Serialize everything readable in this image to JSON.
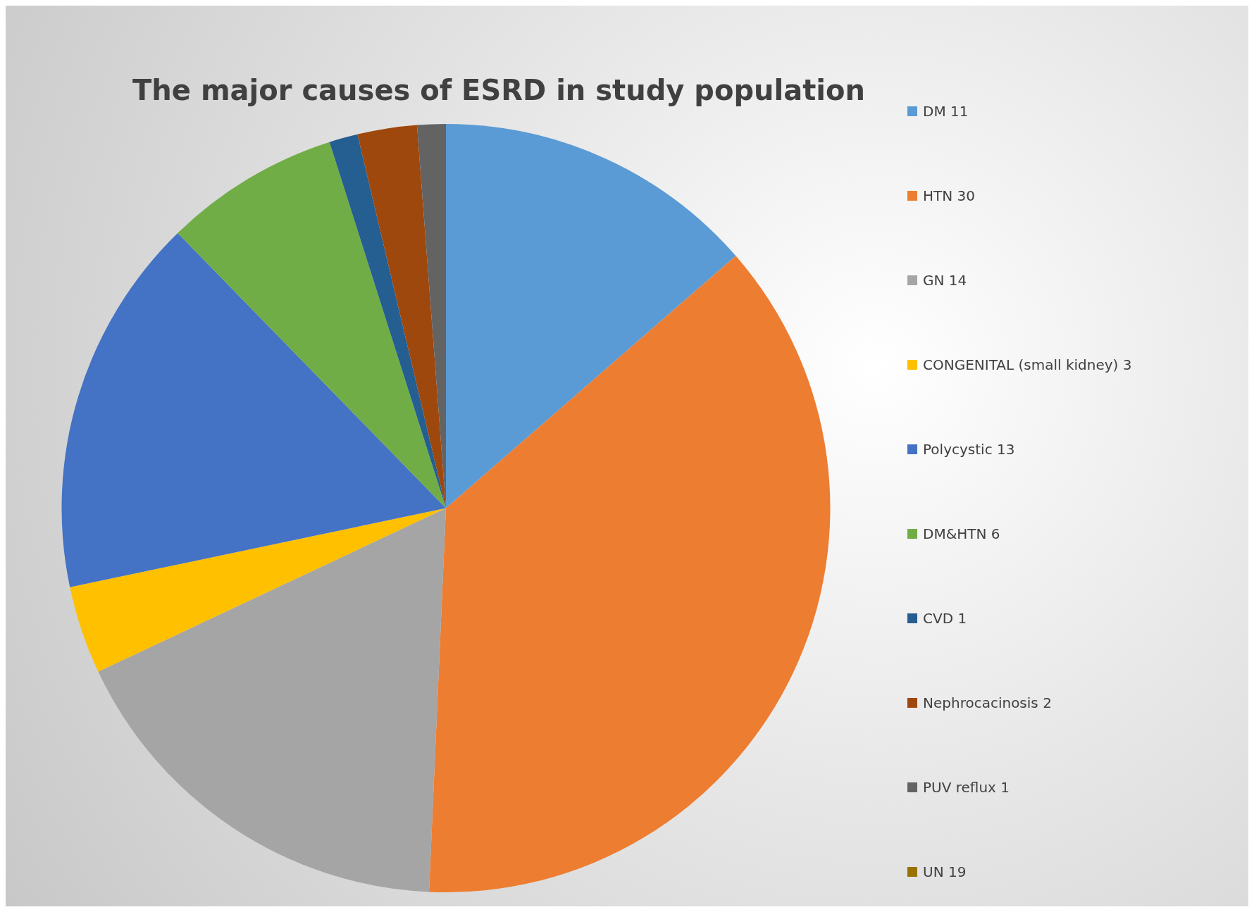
{
  "chart_data": {
    "type": "pie",
    "title": "The major causes of ESRD in study population",
    "categories": [
      "DM 11",
      "HTN 30",
      "GN 14",
      "CONGENITAL (small kidney) 3",
      "Polycystic 13",
      "DM&HTN 6",
      "CVD 1",
      "Nephrocacinosis 2",
      "PUV reflux 1",
      "UN 19"
    ],
    "values": [
      13.6,
      37.1,
      17.3,
      3.7,
      16.0,
      7.4,
      1.2,
      2.5,
      1.2,
      0
    ],
    "colors": [
      "#5b9bd5",
      "#ed7d31",
      "#a5a5a5",
      "#ffc000",
      "#4472c4",
      "#70ad47",
      "#255e91",
      "#9e480e",
      "#636363",
      "#997300"
    ],
    "legend": "right"
  }
}
